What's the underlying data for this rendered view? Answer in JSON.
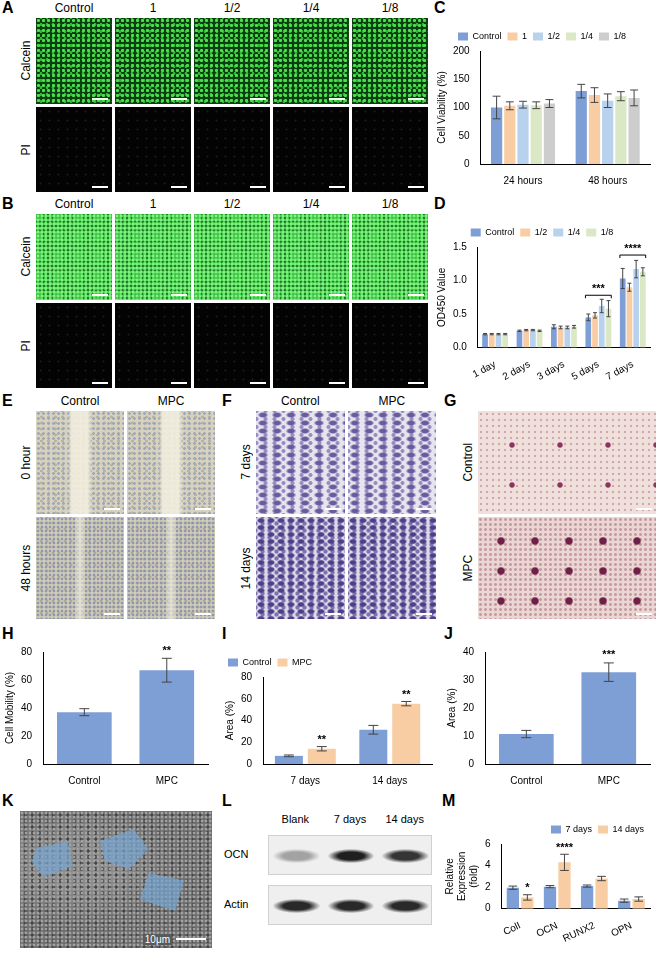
{
  "chart_data": [
    {
      "panel": "C",
      "type": "bar",
      "ylabel": "Cell Viability (%)",
      "categories": [
        "24 hours",
        "48 hours"
      ],
      "series": [
        {
          "name": "Control",
          "color": "#7e9ed6",
          "values": [
            100,
            129
          ],
          "errors": [
            20,
            12
          ]
        },
        {
          "name": "1",
          "color": "#f8cda3",
          "values": [
            103,
            122
          ],
          "errors": [
            7,
            13
          ]
        },
        {
          "name": "1/2",
          "color": "#b8d2ee",
          "values": [
            105,
            112
          ],
          "errors": [
            6,
            12
          ]
        },
        {
          "name": "1/4",
          "color": "#dbe8c5",
          "values": [
            104,
            120
          ],
          "errors": [
            6,
            8
          ]
        },
        {
          "name": "1/8",
          "color": "#cdcdcd",
          "values": [
            107,
            117
          ],
          "errors": [
            7,
            14
          ]
        }
      ],
      "ylim": [
        0,
        200
      ],
      "yticks": [
        0,
        50,
        100,
        150,
        200
      ],
      "grid": false,
      "legend": "top"
    },
    {
      "panel": "D",
      "type": "bar",
      "ylabel": "OD450 Value",
      "categories": [
        "1 day",
        "2 days",
        "3 days",
        "5 days",
        "7 days"
      ],
      "series": [
        {
          "name": "Control",
          "color": "#7e9ed6",
          "values": [
            0.2,
            0.25,
            0.31,
            0.45,
            1.03
          ],
          "errors": [
            0.01,
            0.01,
            0.03,
            0.05,
            0.15
          ]
        },
        {
          "name": "1/2",
          "color": "#f8cda3",
          "values": [
            0.2,
            0.26,
            0.3,
            0.48,
            0.9
          ],
          "errors": [
            0.01,
            0.01,
            0.02,
            0.04,
            0.06
          ]
        },
        {
          "name": "1/4",
          "color": "#b8d2ee",
          "values": [
            0.2,
            0.26,
            0.3,
            0.62,
            1.17
          ],
          "errors": [
            0.01,
            0.01,
            0.02,
            0.1,
            0.13
          ]
        },
        {
          "name": "1/8",
          "color": "#dbe8c5",
          "values": [
            0.2,
            0.25,
            0.31,
            0.58,
            1.13
          ],
          "errors": [
            0.01,
            0.01,
            0.02,
            0.12,
            0.06
          ]
        }
      ],
      "ylim": [
        0,
        1.5
      ],
      "yticks": [
        {
          "value": 0,
          "label": "0.0"
        },
        0.5,
        {
          "value": 1,
          "label": "1.0"
        },
        1.5
      ],
      "annotations": [
        {
          "text": "***",
          "x": "5 days",
          "y": 0.78
        },
        {
          "text": "****",
          "x": "7 days",
          "y": 1.38
        }
      ],
      "grid": false,
      "legend": "top"
    },
    {
      "panel": "H",
      "type": "bar",
      "ylabel": "Cell Mobility (%)",
      "categories": [
        "Control",
        "MPC"
      ],
      "values": [
        37,
        67
      ],
      "errors": [
        2.5,
        8.5
      ],
      "color": "#7e9ed6",
      "ylim": [
        0,
        80
      ],
      "yticks": [
        0,
        20,
        40,
        60,
        80
      ],
      "annotations": [
        {
          "text": "**",
          "x": "MPC",
          "y": 77
        }
      ],
      "grid": false
    },
    {
      "panel": "I",
      "type": "bar",
      "ylabel": "Area (%)",
      "categories": [
        "7 days",
        "14 days"
      ],
      "series": [
        {
          "name": "Control",
          "color": "#7e9ed6",
          "values": [
            7.5,
            31.5
          ],
          "errors": [
            0.8,
            4
          ]
        },
        {
          "name": "MPC",
          "color": "#f8cda3",
          "values": [
            14,
            55.5
          ],
          "errors": [
            2,
            2
          ]
        }
      ],
      "ylim": [
        0,
        80
      ],
      "yticks": [
        0,
        20,
        40,
        60,
        80
      ],
      "annotations": [
        {
          "text": "**",
          "x": "7 days",
          "series": "MPC",
          "y": 17
        },
        {
          "text": "**",
          "x": "14 days",
          "series": "MPC",
          "y": 58.5
        }
      ],
      "grid": false,
      "legend": "top-left"
    },
    {
      "panel": "J",
      "type": "bar",
      "ylabel": "Area (%)",
      "categories": [
        "Control",
        "MPC"
      ],
      "values": [
        10.7,
        32.8
      ],
      "errors": [
        1.3,
        3.3
      ],
      "color": "#7e9ed6",
      "ylim": [
        0,
        40
      ],
      "yticks": [
        0,
        10,
        20,
        30,
        40
      ],
      "annotations": [
        {
          "text": "***",
          "x": "MPC",
          "y": 37
        }
      ],
      "grid": false
    },
    {
      "panel": "M",
      "type": "bar",
      "ylabel": "Relative Expression (fold)",
      "categories": [
        "ColI",
        "OCN",
        "RUNX2",
        "OPN"
      ],
      "series": [
        {
          "name": "7 days",
          "color": "#7e9ed6",
          "values": [
            1.95,
            2.05,
            2.1,
            0.75
          ],
          "errors": [
            0.15,
            0.1,
            0.1,
            0.15
          ]
        },
        {
          "name": "14 days",
          "color": "#f8cda3",
          "values": [
            1.05,
            4.3,
            2.8,
            0.9
          ],
          "errors": [
            0.25,
            0.75,
            0.2,
            0.2
          ]
        }
      ],
      "ylim": [
        0,
        6
      ],
      "yticks": [
        0,
        2,
        4,
        6
      ],
      "annotations": [
        {
          "text": "*",
          "x": "ColI",
          "series": "14 days",
          "y": 1.4
        },
        {
          "text": "****",
          "x": "OCN",
          "series": "14 days",
          "y": 5.15
        }
      ],
      "grid": false,
      "legend": "top-right"
    }
  ],
  "image_panels": [
    {
      "panel": "A",
      "columns": [
        "Control",
        "1",
        "1/2",
        "1/4",
        "1/8"
      ],
      "rows": [
        "Calcein",
        "PI"
      ]
    },
    {
      "panel": "B",
      "columns": [
        "Control",
        "1",
        "1/2",
        "1/4",
        "1/8"
      ],
      "rows": [
        "Calcein",
        "PI"
      ]
    },
    {
      "panel": "E",
      "columns": [
        "Control",
        "MPC"
      ],
      "rows": [
        "0 hour",
        "48 hours"
      ]
    },
    {
      "panel": "F",
      "columns": [
        "Control",
        "MPC"
      ],
      "rows": [
        "7 days",
        "14 days"
      ]
    },
    {
      "panel": "G",
      "rows": [
        "Control",
        "MPC"
      ]
    },
    {
      "panel": "K",
      "scale_bar": "10μm"
    },
    {
      "panel": "L",
      "lanes": [
        "Blank",
        "7 days",
        "14 days"
      ],
      "rows": [
        "OCN",
        "Actin"
      ]
    }
  ]
}
